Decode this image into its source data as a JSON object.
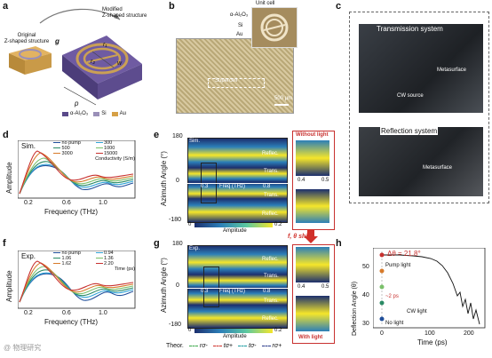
{
  "panel_labels": {
    "a": "a",
    "b": "b",
    "c": "c",
    "d": "d",
    "e": "e",
    "f": "f",
    "g": "g",
    "h": "h"
  },
  "panel_a": {
    "modified": "Modified\nZ-shaped structure",
    "original": "Original\nZ-shaped structure",
    "dims": {
      "g": "g",
      "r1": "r₁",
      "r2": "r₂",
      "w": "w",
      "p": "p"
    },
    "legend": [
      {
        "label": "α-Al₂O₃",
        "color": "#5a4a8a"
      },
      {
        "label": "Si",
        "color": "#9a8fb8"
      },
      {
        "label": "Au",
        "color": "#d6a046"
      }
    ]
  },
  "panel_b": {
    "unit_cell": "Unit cell",
    "layers": [
      "α-Al₂O₃",
      "Si",
      "Au"
    ],
    "region": "Supercell",
    "scale": "500 µm"
  },
  "panel_c": {
    "transmission_title": "Transmission system",
    "reflection_title": "Reflection system",
    "labels_top": [
      "Metasurface",
      "CW source"
    ],
    "labels_bottom": [
      "Metasurface"
    ]
  },
  "panel_d": {
    "tag": "Sim.",
    "ylabel": "Amplitude",
    "xlabel": "Frequency (THz)",
    "ticks_x": [
      "0.2",
      "0.6",
      "1.0"
    ],
    "legend": [
      {
        "label": "no pump",
        "color": "#1f4e9a"
      },
      {
        "label": "300",
        "color": "#2fa3d6"
      },
      {
        "label": "500",
        "color": "#2a8a64"
      },
      {
        "label": "1000",
        "color": "#7ac06a"
      },
      {
        "label": "3000",
        "color": "#d77a2a"
      },
      {
        "label": "15000",
        "color": "#c8312f"
      }
    ],
    "legend_title": "Conductivity (S/m)"
  },
  "panel_e": {
    "tag": "Sim.",
    "y_top": "180",
    "y_mid": "0",
    "y_bot": "-180",
    "ylabel": "Azimuth Angle (°)",
    "rows": [
      "Reflec.",
      "Trans.",
      "Trans.",
      "Reflec."
    ],
    "freq": "Freq (THz)",
    "f_ticks": [
      "0.3",
      "0.8"
    ],
    "cbar_min": "0",
    "cbar_max": "0.2",
    "cbar_label": "Amplitude",
    "side_title": "Without light",
    "side_ticks": [
      "0.4",
      "0.5"
    ]
  },
  "panel_f": {
    "tag": "Exp.",
    "ylabel": "Amplitude",
    "xlabel": "Frequency (THz)",
    "ticks_x": [
      "0.2",
      "0.6",
      "1.0"
    ],
    "legend": [
      {
        "label": "no pump",
        "color": "#1f4e9a"
      },
      {
        "label": "0.94",
        "color": "#2fa3d6"
      },
      {
        "label": "1.06",
        "color": "#2a8a64"
      },
      {
        "label": "1.36",
        "color": "#7ac06a"
      },
      {
        "label": "1.62",
        "color": "#d77a2a"
      },
      {
        "label": "2.20",
        "color": "#c8312f"
      }
    ],
    "legend_title": "Time (ps)"
  },
  "panel_g": {
    "tag": "Exp.",
    "y_top": "180",
    "y_mid": "0",
    "y_bot": "-180",
    "ylabel": "Azimuth Angle (°)",
    "rows": [
      "Reflec.",
      "Trans.",
      "Trans.",
      "Reflec."
    ],
    "freq": "Freq (THz)",
    "f_ticks": [
      "0.3",
      "0.8"
    ],
    "cbar_min": "0",
    "cbar_max": "0.2",
    "cbar_label": "Amplitude",
    "shift_label": "f, θ shift",
    "side_title": "With light",
    "side_ticks": [
      "0.4",
      "0.5"
    ],
    "theor_label": "Theor.",
    "theor_legend": [
      {
        "label": "rσ-",
        "color": "#3aa84a",
        "dash": true
      },
      {
        "label": "tσ+",
        "color": "#d0302a",
        "dash": true
      },
      {
        "label": "tσ-",
        "color": "#1a9aa0",
        "dash": true
      },
      {
        "label": "rσ+",
        "color": "#2a3a8a",
        "dash": true
      }
    ]
  },
  "panel_h": {
    "delta": "Δθ = 21.8°",
    "ylabel": "Deflection Angle (θ)",
    "xlabel": "Time (ps)",
    "y_ticks": [
      "30",
      "40",
      "50"
    ],
    "x_ticks": [
      "0",
      "100",
      "200"
    ],
    "annotations": [
      "Pump light",
      "~2 ps",
      "CW light",
      "No light"
    ]
  },
  "watermark": "@ 物理研究"
}
